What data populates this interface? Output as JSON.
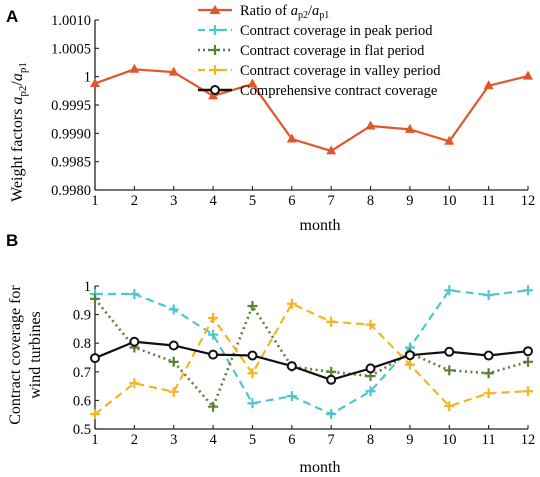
{
  "chart_data": [
    {
      "type": "line",
      "panel_label": "A",
      "xlabel": "month",
      "ylabel_main": "Weight factors ",
      "ylabel_var": "a",
      "ylabel_sub1": "p2",
      "ylabel_slash": "/",
      "ylabel_var2": "a",
      "ylabel_sub2": "p1",
      "x": [
        1,
        2,
        3,
        4,
        5,
        6,
        7,
        8,
        9,
        10,
        11,
        12
      ],
      "xlim": [
        1,
        12
      ],
      "ylim": [
        0.998,
        1.001
      ],
      "yticks": [
        0.998,
        0.9985,
        0.999,
        0.9995,
        1.0,
        1.0005,
        1.001
      ],
      "ytick_labels": [
        "0.9980",
        "0.9985",
        "0.9990",
        "0.9995",
        "1",
        "1.0005",
        "1.0010"
      ],
      "series": [
        {
          "name_prefix": "Ratio of ",
          "name_var1": "a",
          "name_sub1": "p2",
          "name_slash": "/",
          "name_var2": "a",
          "name_sub2": "p1",
          "color": "#e1562a",
          "marker": "triangle",
          "values": [
            0.99988,
            1.00013,
            1.00008,
            0.99966,
            0.99987,
            0.9989,
            0.99869,
            0.99913,
            0.99907,
            0.99886,
            0.99984,
            1.00001
          ]
        }
      ],
      "legend_position": "top"
    },
    {
      "type": "line",
      "panel_label": "B",
      "xlabel": "month",
      "ylabel_line1": "Contract coverage for",
      "ylabel_line2": "wind turbines",
      "x": [
        1,
        2,
        3,
        4,
        5,
        6,
        7,
        8,
        9,
        10,
        11,
        12
      ],
      "xlim": [
        1,
        12
      ],
      "ylim": [
        0.5,
        1.0
      ],
      "yticks": [
        0.5,
        0.6,
        0.7,
        0.8,
        0.9,
        1.0
      ],
      "ytick_labels": [
        "0.5",
        "0.6",
        "0.7",
        "0.8",
        "0.9",
        "1"
      ],
      "series": [
        {
          "name": "Contract coverage in peak period",
          "color": "#4fc6cf",
          "dash": "dashed",
          "marker": "plus",
          "values": [
            0.972,
            0.972,
            0.918,
            0.83,
            0.59,
            0.615,
            0.552,
            0.632,
            0.785,
            0.985,
            0.968,
            0.985
          ]
        },
        {
          "name": "Contract coverage in flat period",
          "color": "#5d7f39",
          "dash": "dotted",
          "marker": "plus",
          "values": [
            0.955,
            0.785,
            0.735,
            0.578,
            0.93,
            0.718,
            0.7,
            0.685,
            0.765,
            0.705,
            0.695,
            0.735
          ]
        },
        {
          "name": "Contract coverage in valley period",
          "color": "#f2b525",
          "dash": "dashed",
          "marker": "plus",
          "values": [
            0.552,
            0.66,
            0.63,
            0.888,
            0.695,
            0.938,
            0.875,
            0.865,
            0.725,
            0.58,
            0.625,
            0.632
          ]
        },
        {
          "name": "Comprehensive contract coverage",
          "color": "#111111",
          "dash": "solid",
          "marker": "circle",
          "values": [
            0.748,
            0.805,
            0.792,
            0.76,
            0.757,
            0.72,
            0.672,
            0.712,
            0.758,
            0.77,
            0.757,
            0.772
          ]
        }
      ]
    }
  ]
}
